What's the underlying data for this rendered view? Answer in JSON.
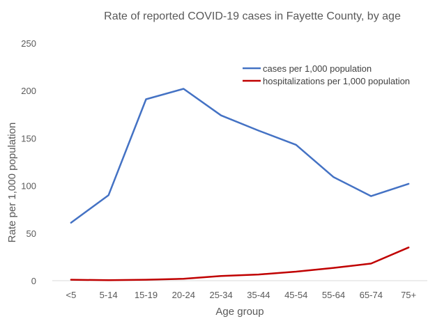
{
  "chart_data": {
    "type": "line",
    "title": "Rate of reported COVID-19 cases in Fayette County, by age",
    "xlabel": "Age group",
    "ylabel": "Rate per 1,000 population",
    "categories": [
      "<5",
      "5-14",
      "15-19",
      "20-24",
      "25-34",
      "35-44",
      "45-54",
      "55-64",
      "65-74",
      "75+"
    ],
    "yticks": [
      "0",
      "50",
      "100",
      "150",
      "200",
      "250"
    ],
    "ylim": [
      0,
      250
    ],
    "grid": false,
    "legend_position": "top-right",
    "series": [
      {
        "name": "cases per 1,000 population",
        "color": "#4472c4",
        "values": [
          61,
          90,
          191,
          202,
          174,
          158,
          143,
          109,
          89,
          102
        ]
      },
      {
        "name": "hospitalizations per 1,000 population",
        "color": "#c00000",
        "values": [
          1,
          0.5,
          1,
          2,
          5,
          6.5,
          9.5,
          13.5,
          18,
          35
        ]
      }
    ]
  }
}
